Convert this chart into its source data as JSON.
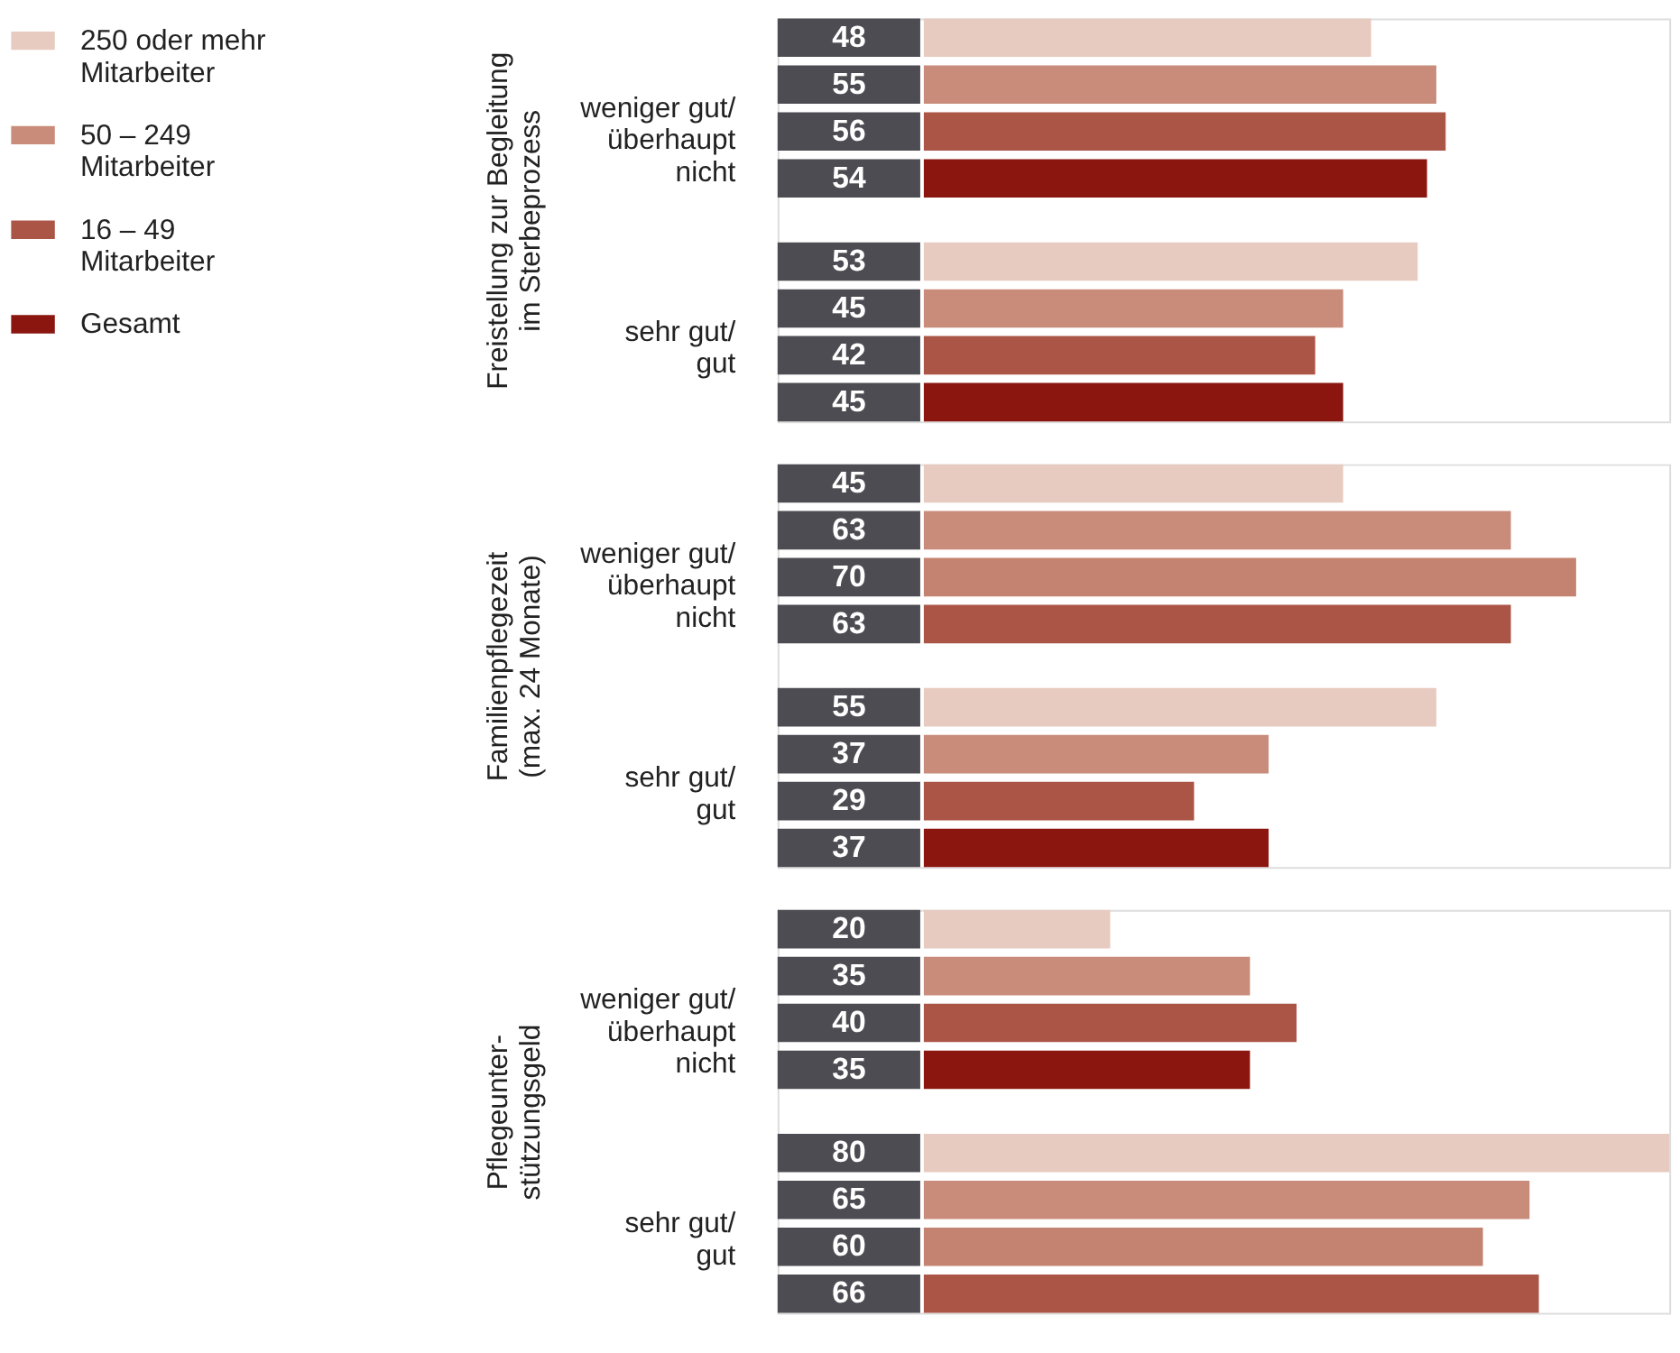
{
  "chart_data": [
    {
      "type": "bar",
      "orientation": "horizontal",
      "ylabel": "Freistellung zur Begleitung\nim Sterbeprozess",
      "categories": [
        "weniger gut/\nüberhaupt\nnicht",
        "sehr gut/\ngut"
      ],
      "data_labels": true,
      "legend": "left",
      "series": [
        {
          "name": "250 oder mehr\nMitarbeiter",
          "color": "#e8cbc0",
          "values": [
            48,
            53
          ],
          "colors": [
            "#e8cbc0",
            "#e8cbc0"
          ]
        },
        {
          "name": "50 – 249\nMitarbeiter",
          "color": "#c98b7a",
          "values": [
            55,
            45
          ],
          "colors": [
            "#c98b7a",
            "#c98b7a"
          ]
        },
        {
          "name": "16 – 49\nMitarbeiter",
          "color": "#ab5546",
          "values": [
            56,
            42
          ],
          "colors": [
            "#ab5546",
            "#ab5546"
          ]
        },
        {
          "name": "Gesamt",
          "color": "#8b160f",
          "values": [
            54,
            45
          ],
          "colors": [
            "#8b160f",
            "#8b160f"
          ]
        }
      ]
    },
    {
      "type": "bar",
      "orientation": "horizontal",
      "ylabel": "Familienpflegezeit\n(max. 24 Monate)",
      "categories": [
        "weniger gut/\nüberhaupt\nnicht",
        "sehr gut/\ngut"
      ],
      "data_labels": true,
      "series": [
        {
          "values": [
            45,
            55
          ],
          "colors": [
            "#e8cbc0",
            "#e8cbc0"
          ]
        },
        {
          "values": [
            63,
            37
          ],
          "colors": [
            "#c98b7a",
            "#c98b7a"
          ]
        },
        {
          "values": [
            70,
            29
          ],
          "colors": [
            "#c48271",
            "#ab5546"
          ]
        },
        {
          "values": [
            63,
            37
          ],
          "colors": [
            "#ab5546",
            "#8b160f"
          ]
        }
      ]
    },
    {
      "type": "bar",
      "orientation": "horizontal",
      "ylabel": "Pflegeunter-\nstützungsgeld",
      "categories": [
        "weniger gut/\nüberhaupt\nnicht",
        "sehr gut/\ngut"
      ],
      "data_labels": true,
      "series": [
        {
          "values": [
            20,
            80
          ],
          "colors": [
            "#e8cbc0",
            "#e8cbc0"
          ]
        },
        {
          "values": [
            35,
            65
          ],
          "colors": [
            "#c98b7a",
            "#c98b7a"
          ]
        },
        {
          "values": [
            40,
            60
          ],
          "colors": [
            "#ab5546",
            "#c48271"
          ]
        },
        {
          "values": [
            35,
            66
          ],
          "colors": [
            "#8b160f",
            "#ab5546"
          ]
        }
      ]
    }
  ]
}
